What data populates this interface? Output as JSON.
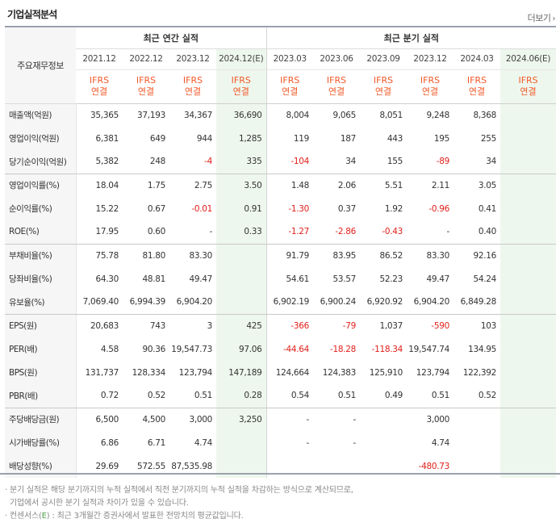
{
  "header": {
    "title": "기업실적분석",
    "more_label": "더보기"
  },
  "table": {
    "corner_label": "주요재무정보",
    "annual_group": "최근 연간 실적",
    "quarter_group": "최근 분기 실적",
    "periods": [
      {
        "label": "2021.12",
        "std": "IFRS",
        "basis": "연결",
        "est": false
      },
      {
        "label": "2022.12",
        "std": "IFRS",
        "basis": "연결",
        "est": false
      },
      {
        "label": "2023.12",
        "std": "IFRS",
        "basis": "연결",
        "est": false
      },
      {
        "label": "2024.12(E)",
        "std": "IFRS",
        "basis": "연결",
        "est": true
      },
      {
        "label": "2023.03",
        "std": "IFRS",
        "basis": "연결",
        "est": false
      },
      {
        "label": "2023.06",
        "std": "IFRS",
        "basis": "연결",
        "est": false
      },
      {
        "label": "2023.09",
        "std": "IFRS",
        "basis": "연결",
        "est": false
      },
      {
        "label": "2023.12",
        "std": "IFRS",
        "basis": "연결",
        "est": false
      },
      {
        "label": "2024.03",
        "std": "IFRS",
        "basis": "연결",
        "est": false
      },
      {
        "label": "2024.06(E)",
        "std": "IFRS",
        "basis": "연결",
        "est": true
      }
    ],
    "rows": [
      {
        "label": "매출액(억원)",
        "values": [
          "35,365",
          "37,193",
          "34,367",
          "36,690",
          "8,004",
          "9,065",
          "8,051",
          "9,248",
          "8,368",
          ""
        ]
      },
      {
        "label": "영업이익(억원)",
        "values": [
          "6,381",
          "649",
          "944",
          "1,285",
          "119",
          "187",
          "443",
          "195",
          "255",
          ""
        ]
      },
      {
        "label": "당기순이익(억원)",
        "values": [
          "5,382",
          "248",
          "-4",
          "335",
          "-104",
          "34",
          "155",
          "-89",
          "34",
          ""
        ],
        "sep": true
      },
      {
        "label": "영업이익률(%)",
        "values": [
          "18.04",
          "1.75",
          "2.75",
          "3.50",
          "1.48",
          "2.06",
          "5.51",
          "2.11",
          "3.05",
          ""
        ]
      },
      {
        "label": "순이익률(%)",
        "values": [
          "15.22",
          "0.67",
          "-0.01",
          "0.91",
          "-1.30",
          "0.37",
          "1.92",
          "-0.96",
          "0.41",
          ""
        ]
      },
      {
        "label": "ROE(%)",
        "values": [
          "17.95",
          "0.60",
          "-",
          "0.33",
          "-1.27",
          "-2.86",
          "-0.43",
          "-",
          "0.40",
          ""
        ],
        "sep": true
      },
      {
        "label": "부채비율(%)",
        "values": [
          "75.78",
          "81.80",
          "83.30",
          "",
          "91.79",
          "83.95",
          "86.52",
          "83.30",
          "92.16",
          ""
        ]
      },
      {
        "label": "당좌비율(%)",
        "values": [
          "64.30",
          "48.81",
          "49.47",
          "",
          "54.61",
          "53.57",
          "52.23",
          "49.47",
          "54.24",
          ""
        ]
      },
      {
        "label": "유보율(%)",
        "values": [
          "7,069.40",
          "6,994.39",
          "6,904.20",
          "",
          "6,902.19",
          "6,900.24",
          "6,920.92",
          "6,904.20",
          "6,849.28",
          ""
        ],
        "sep": true
      },
      {
        "label": "EPS(원)",
        "values": [
          "20,683",
          "743",
          "3",
          "425",
          "-366",
          "-79",
          "1,037",
          "-590",
          "103",
          ""
        ]
      },
      {
        "label": "PER(배)",
        "values": [
          "4.58",
          "90.36",
          "19,547.73",
          "97.06",
          "-44.64",
          "-18.28",
          "-118.34",
          "19,547.74",
          "134.95",
          ""
        ]
      },
      {
        "label": "BPS(원)",
        "values": [
          "131,737",
          "128,334",
          "123,794",
          "147,189",
          "124,664",
          "124,383",
          "125,910",
          "123,794",
          "122,392",
          ""
        ]
      },
      {
        "label": "PBR(배)",
        "values": [
          "0.72",
          "0.52",
          "0.51",
          "0.28",
          "0.54",
          "0.51",
          "0.49",
          "0.51",
          "0.52",
          ""
        ],
        "sep": true
      },
      {
        "label": "주당배당금(원)",
        "values": [
          "6,500",
          "4,500",
          "3,000",
          "3,250",
          "-",
          "-",
          "",
          "3,000",
          "",
          ""
        ]
      },
      {
        "label": "시가배당률(%)",
        "values": [
          "6.86",
          "6.71",
          "4.74",
          "",
          "-",
          "-",
          "",
          "4.74",
          "",
          ""
        ]
      },
      {
        "label": "배당성향(%)",
        "values": [
          "29.69",
          "572.55",
          "87,535.98",
          "",
          "",
          "",
          "",
          "-480.73",
          "",
          ""
        ]
      }
    ]
  },
  "notes": {
    "line1": "· 분기 실적은 해당 분기까지의 누적 실적에서 직전 분기까지의 누적 실적을 차감하는 방식으로 계산되므로,",
    "line2": "  기업에서 공시한 분기 실적과 차이가 있을 수 있습니다.",
    "line3_prefix": "· 컨센서스(",
    "line3_mark": "E",
    "line3_suffix": ") : 최근 3개월간 증권사에서 발표한 전망치의 평균값입니다."
  },
  "colors": {
    "accent_red": "#e0201a",
    "ifrs_orange": "#f25a29",
    "estimate_bg": "#eef7ee"
  }
}
